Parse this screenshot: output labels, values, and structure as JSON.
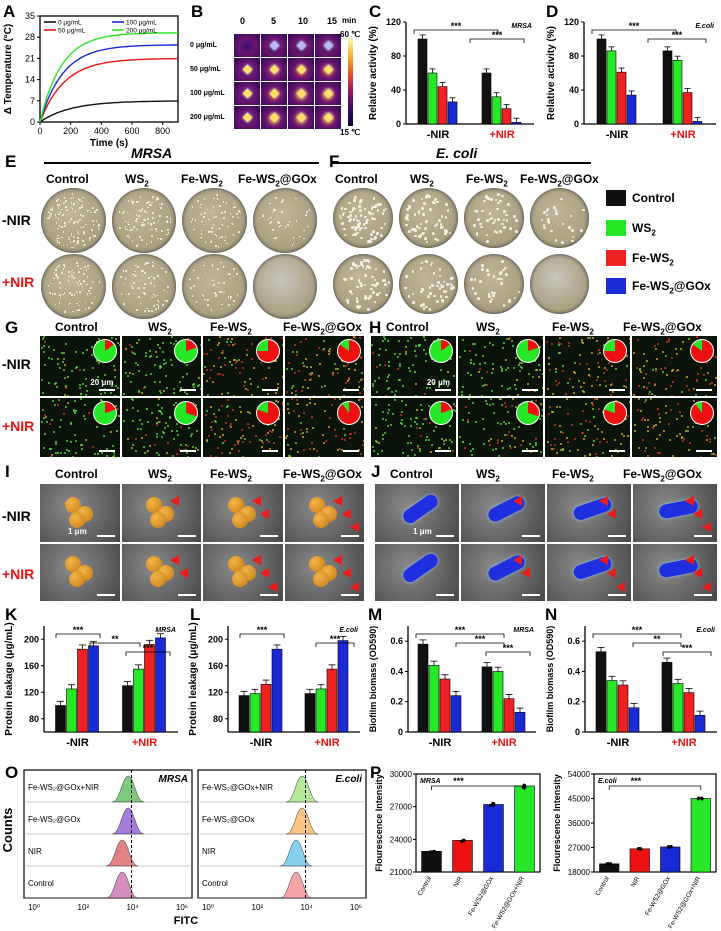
{
  "panels": {
    "A": "A",
    "B": "B",
    "C": "C",
    "D": "D",
    "E": "E",
    "F": "F",
    "G": "G",
    "H": "H",
    "I": "I",
    "J": "J",
    "K": "K",
    "L": "L",
    "M": "M",
    "N": "N",
    "O": "O",
    "P": "P"
  },
  "groups": {
    "control": "Control",
    "ws2": "WS",
    "fews2": "Fe-WS",
    "fews2gox": "Fe-WS",
    "sub2": "2",
    "gox_suffix": "@GOx"
  },
  "conditions": {
    "minus": "-NIR",
    "plus": "+NIR"
  },
  "bacteria": {
    "mrsa": "MRSA",
    "ecoli": "E. coli",
    "ecoli_short": "E.coli"
  },
  "scale": {
    "fluor": "20 μm",
    "sem": "1 μm"
  },
  "colors": {
    "control": "#111111",
    "ws2": "#27e827",
    "fews2": "#ee2222",
    "fews2gox": "#1a2bd6"
  },
  "panelA": {
    "ylabel": "Δ Temperature (°C)",
    "xlabel": "Time (s)",
    "yticks": [
      "0",
      "7",
      "14",
      "21",
      "28",
      "35"
    ],
    "xticks": [
      "0",
      "200",
      "400",
      "600",
      "800"
    ],
    "legend": [
      "0 μg/mL",
      "50 μg/mL",
      "100 μg/mL",
      "200 μg/mL"
    ]
  },
  "panelB": {
    "times": [
      "0",
      "5",
      "10",
      "15"
    ],
    "unit": "min",
    "rows": [
      "0 μg/mL",
      "50 μg/mL",
      "100 μg/mL",
      "200 μg/mL"
    ],
    "scale_max": "60 ℃",
    "scale_min": "15 ℃"
  },
  "legendE": [
    "Control",
    "WS",
    "Fe-WS",
    "Fe-WS"
  ],
  "panelO": {
    "ylabel": "Counts",
    "xlabel": "FITC",
    "rows": [
      "Fe-WS₂@GOx+NIR",
      "Fe-WS₂@GOx",
      "NIR",
      "Control"
    ],
    "xticks": [
      "10⁰",
      "10²",
      "10⁴",
      "10⁶"
    ]
  },
  "chart_data": [
    {
      "id": "A",
      "type": "line",
      "title": "",
      "xlabel": "Time (s)",
      "ylabel": "Δ Temperature (°C)",
      "xlim": [
        0,
        900
      ],
      "ylim": [
        0,
        35
      ],
      "series": [
        {
          "name": "0 μg/mL",
          "tau": 200,
          "amp": 7
        },
        {
          "name": "50 μg/mL",
          "tau": 160,
          "amp": 21
        },
        {
          "name": "100 μg/mL",
          "tau": 150,
          "amp": 25.5
        },
        {
          "name": "200 μg/mL",
          "tau": 140,
          "amp": 29.5
        }
      ]
    },
    {
      "id": "C",
      "type": "bar",
      "title": "MRSA",
      "ylabel": "Relative activity (%)",
      "ylim": [
        0,
        120
      ],
      "yticks": [
        0,
        40,
        80,
        120
      ],
      "categories": [
        "-NIR",
        "+NIR"
      ],
      "series": [
        {
          "name": "Control",
          "values": [
            100,
            60
          ]
        },
        {
          "name": "WS2",
          "values": [
            60,
            32
          ]
        },
        {
          "name": "Fe-WS2",
          "values": [
            44,
            18
          ]
        },
        {
          "name": "Fe-WS2@GOx",
          "values": [
            26,
            2
          ]
        }
      ],
      "annotations": [
        "***",
        "***"
      ]
    },
    {
      "id": "D",
      "type": "bar",
      "title": "E.coli",
      "ylabel": "Relative activity (%)",
      "ylim": [
        0,
        120
      ],
      "yticks": [
        0,
        40,
        80,
        120
      ],
      "categories": [
        "-NIR",
        "+NIR"
      ],
      "series": [
        {
          "name": "Control",
          "values": [
            100,
            86
          ]
        },
        {
          "name": "WS2",
          "values": [
            86,
            75
          ]
        },
        {
          "name": "Fe-WS2",
          "values": [
            61,
            37
          ]
        },
        {
          "name": "Fe-WS2@GOx",
          "values": [
            34,
            3
          ]
        }
      ],
      "annotations": [
        "***",
        "***"
      ]
    },
    {
      "id": "K",
      "type": "bar",
      "title": "MRSA",
      "ylabel": "Protein leakage (μg/mL)",
      "ylim": [
        60,
        220
      ],
      "yticks": [
        80,
        120,
        160,
        200
      ],
      "categories": [
        "-NIR",
        "+NIR"
      ],
      "series": [
        {
          "name": "Control",
          "values": [
            100,
            130
          ]
        },
        {
          "name": "WS2",
          "values": [
            125,
            155
          ]
        },
        {
          "name": "Fe-WS2",
          "values": [
            185,
            192
          ]
        },
        {
          "name": "Fe-WS2@GOx",
          "values": [
            190,
            202
          ]
        }
      ],
      "annotations": [
        "***",
        "**",
        "***"
      ]
    },
    {
      "id": "L",
      "type": "bar",
      "title": "E.coli",
      "ylabel": "Protein leakage (μg/mL)",
      "ylim": [
        60,
        220
      ],
      "yticks": [
        80,
        120,
        160,
        200
      ],
      "categories": [
        "-NIR",
        "+NIR"
      ],
      "series": [
        {
          "name": "Control",
          "values": [
            115,
            118
          ]
        },
        {
          "name": "WS2",
          "values": [
            118,
            125
          ]
        },
        {
          "name": "Fe-WS2",
          "values": [
            132,
            155
          ]
        },
        {
          "name": "Fe-WS2@GOx",
          "values": [
            185,
            198
          ]
        }
      ],
      "annotations": [
        "***",
        "***"
      ]
    },
    {
      "id": "M",
      "type": "bar",
      "title": "MRSA",
      "ylabel": "Biofilm biomass (OD590)",
      "ylim": [
        0,
        0.7
      ],
      "yticks": [
        0,
        0.2,
        0.4,
        0.6
      ],
      "categories": [
        "-NIR",
        "+NIR"
      ],
      "series": [
        {
          "name": "Control",
          "values": [
            0.58,
            0.43
          ]
        },
        {
          "name": "WS2",
          "values": [
            0.44,
            0.4
          ]
        },
        {
          "name": "Fe-WS2",
          "values": [
            0.35,
            0.22
          ]
        },
        {
          "name": "Fe-WS2@GOx",
          "values": [
            0.24,
            0.13
          ]
        }
      ],
      "annotations": [
        "***",
        "***",
        "***"
      ]
    },
    {
      "id": "N",
      "type": "bar",
      "title": "E.coli",
      "ylabel": "Biofilm biomass (OD590)",
      "ylim": [
        0,
        0.7
      ],
      "yticks": [
        0,
        0.2,
        0.4,
        0.6
      ],
      "categories": [
        "-NIR",
        "+NIR"
      ],
      "series": [
        {
          "name": "Control",
          "values": [
            0.53,
            0.46
          ]
        },
        {
          "name": "WS2",
          "values": [
            0.34,
            0.32
          ]
        },
        {
          "name": "Fe-WS2",
          "values": [
            0.31,
            0.26
          ]
        },
        {
          "name": "Fe-WS2@GOx",
          "values": [
            0.16,
            0.11
          ]
        }
      ],
      "annotations": [
        "***",
        "**",
        "***"
      ]
    },
    {
      "id": "P1",
      "type": "bar",
      "title": "MRSA",
      "ylabel": "Flourescence Intensity",
      "ylim": [
        21000,
        30000
      ],
      "yticks": [
        21000,
        24000,
        27000,
        30000
      ],
      "categories": [
        "Control",
        "NIR",
        "Fe-WS2@GOx",
        "Fe-WS2@GOx+NIR"
      ],
      "values": [
        22900,
        23900,
        27200,
        28900
      ],
      "annotations": [
        "***"
      ]
    },
    {
      "id": "P2",
      "type": "bar",
      "title": "E.coli",
      "ylabel": "Flourescence Intensity",
      "ylim": [
        18000,
        54000
      ],
      "yticks": [
        18000,
        27000,
        36000,
        45000,
        54000
      ],
      "categories": [
        "Control",
        "NIR",
        "Fe-WS2@GOx",
        "Fe-WS2@GOx+NIR"
      ],
      "values": [
        21000,
        26500,
        27200,
        45000
      ],
      "annotations": [
        "***"
      ]
    }
  ]
}
